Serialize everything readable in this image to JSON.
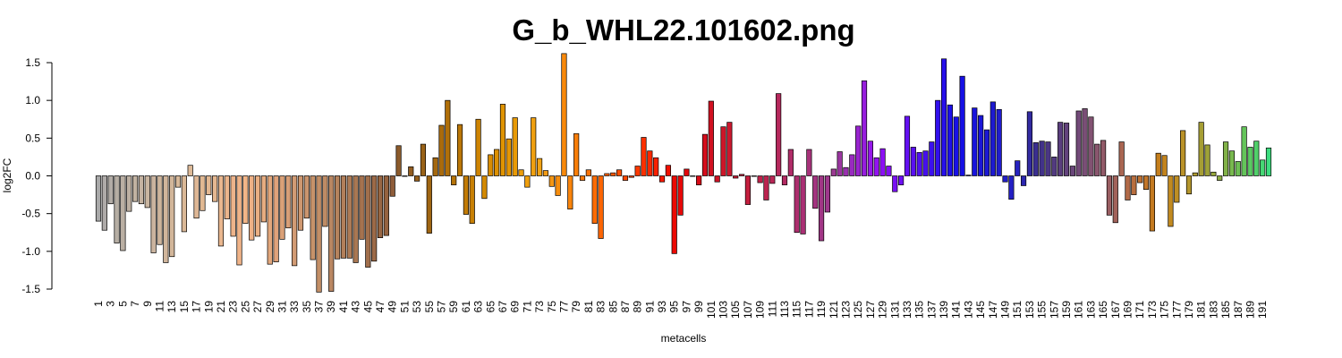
{
  "chart_data": {
    "type": "bar",
    "title": "G_b_WHL22.101602.png",
    "xlabel": "metacells",
    "ylabel": "log2FC",
    "ylim": [
      -1.5,
      1.5
    ],
    "yticks": [
      -1.5,
      -1.0,
      -0.5,
      0.0,
      0.5,
      1.0,
      1.5
    ],
    "ytick_labels": [
      "-1.5",
      "-1.0",
      "-0.5",
      "0.0",
      "0.5",
      "1.0",
      "1.5"
    ],
    "xtick_labels": [
      "1",
      "3",
      "5",
      "7",
      "9",
      "11",
      "13",
      "15",
      "17",
      "19",
      "21",
      "23",
      "25",
      "27",
      "29",
      "31",
      "33",
      "35",
      "37",
      "39",
      "41",
      "43",
      "45",
      "47",
      "49",
      "51",
      "53",
      "55",
      "57",
      "59",
      "61",
      "63",
      "65",
      "67",
      "69",
      "71",
      "73",
      "75",
      "77",
      "79",
      "81",
      "83",
      "85",
      "87",
      "89",
      "91",
      "93",
      "95",
      "97",
      "99",
      "101",
      "103",
      "105",
      "107",
      "109",
      "111",
      "113",
      "115",
      "117",
      "119",
      "121",
      "123",
      "125",
      "127",
      "129",
      "131",
      "133",
      "135",
      "137",
      "139",
      "141",
      "143",
      "145",
      "147",
      "149",
      "151",
      "153",
      "155",
      "157",
      "159",
      "161",
      "163",
      "165",
      "167",
      "169",
      "171",
      "173",
      "175",
      "177",
      "179",
      "181",
      "183",
      "185",
      "187",
      "189",
      "191"
    ],
    "grid": false,
    "values": [
      -0.6,
      -0.72,
      -0.37,
      -0.89,
      -0.99,
      -0.47,
      -0.34,
      -0.37,
      -0.42,
      -1.02,
      -0.91,
      -1.15,
      -1.07,
      -0.15,
      -0.74,
      0.14,
      -0.56,
      -0.46,
      -0.25,
      -0.34,
      -0.93,
      -0.57,
      -0.8,
      -1.18,
      -0.63,
      -0.85,
      -0.8,
      -0.61,
      -1.17,
      -1.14,
      -0.84,
      -0.69,
      -1.19,
      -0.72,
      -0.56,
      -1.11,
      -1.54,
      -0.67,
      -1.53,
      -1.1,
      -1.09,
      -1.09,
      -1.15,
      -0.84,
      -1.21,
      -1.13,
      -0.82,
      -0.79,
      -0.27,
      0.4,
      0.0,
      0.12,
      -0.07,
      0.42,
      -0.76,
      0.24,
      0.67,
      1.0,
      -0.12,
      0.68,
      -0.51,
      -0.63,
      0.75,
      -0.3,
      0.28,
      0.35,
      0.95,
      0.49,
      0.77,
      0.08,
      -0.15,
      0.77,
      0.23,
      0.07,
      -0.14,
      -0.26,
      1.62,
      -0.44,
      0.56,
      -0.06,
      0.08,
      -0.63,
      -0.83,
      0.03,
      0.04,
      0.08,
      -0.06,
      -0.02,
      0.13,
      0.51,
      0.33,
      0.24,
      -0.08,
      0.14,
      -1.03,
      -0.52,
      0.09,
      0.0,
      -0.12,
      0.55,
      0.99,
      -0.08,
      0.65,
      0.71,
      -0.03,
      0.02,
      -0.38,
      0.0,
      -0.09,
      -0.32,
      -0.1,
      1.09,
      -0.12,
      0.35,
      -0.75,
      -0.77,
      0.35,
      -0.43,
      -0.86,
      -0.48,
      0.09,
      0.32,
      0.11,
      0.28,
      0.66,
      1.26,
      0.46,
      0.24,
      0.36,
      0.13,
      -0.21,
      -0.12,
      0.79,
      0.38,
      0.31,
      0.33,
      0.45,
      1.0,
      1.55,
      0.94,
      0.78,
      1.32,
      0.01,
      0.9,
      0.8,
      0.61,
      0.98,
      0.88,
      -0.08,
      -0.31,
      0.2,
      -0.13,
      0.85,
      0.44,
      0.46,
      0.45,
      0.25,
      0.71,
      0.7,
      0.13,
      0.86,
      0.89,
      0.78,
      0.42,
      0.47,
      -0.52,
      -0.62,
      0.45,
      -0.32,
      -0.25,
      -0.09,
      -0.18,
      -0.73,
      0.3,
      0.27,
      -0.67,
      -0.35,
      0.6,
      -0.24,
      0.04,
      0.71,
      0.41,
      0.05,
      -0.06,
      0.45,
      0.33,
      0.19,
      0.65,
      0.38,
      0.46,
      0.21,
      0.37
    ],
    "colors": [
      "#a9a9a9",
      "#aeaaa8",
      "#b2aca6",
      "#b6aea4",
      "#baafa3",
      "#bdb0a2",
      "#c1b2a1",
      "#c5b3a1",
      "#c9b5a0",
      "#cbb49f",
      "#ceb59c",
      "#d0b59b",
      "#d2b69a",
      "#d7b899",
      "#dab897",
      "#ddba98",
      "#dfb896",
      "#e2b993",
      "#e3b892",
      "#e5b790",
      "#e9b78f",
      "#ebb58c",
      "#edb38a",
      "#f0b388",
      "#f2b587",
      "#efb186",
      "#eaaf83",
      "#e6ac80",
      "#e2a77c",
      "#dfa27a",
      "#dba178",
      "#d79e77",
      "#d29b74",
      "#cf9870",
      "#ca956e",
      "#c6926a",
      "#c28e66",
      "#be8b64",
      "#ba8762",
      "#b6835d",
      "#b27f5a",
      "#ad7b56",
      "#a97752",
      "#a5724f",
      "#a16f4c",
      "#9c6a47",
      "#986643",
      "#95623f",
      "#8f5d3a",
      "#8b5a2b",
      "#8d5b27",
      "#925d21",
      "#965f1c",
      "#9a6217",
      "#9f6512",
      "#a4680f",
      "#aa6b0c",
      "#b06f09",
      "#b57308",
      "#bb7706",
      "#c27b05",
      "#c88004",
      "#ce8403",
      "#d38902",
      "#d88c02",
      "#dc9002",
      "#e09402",
      "#e49603",
      "#e89a06",
      "#ec9d0a",
      "#ef9f0d",
      "#f0a010",
      "#f2a314",
      "#f19a14",
      "#f39512",
      "#f68d0e",
      "#f8890c",
      "#f9840b",
      "#f97e09",
      "#fa7808",
      "#fb7206",
      "#fb6b05",
      "#fc6504",
      "#fc5e03",
      "#fd5702",
      "#fd4f02",
      "#fd4801",
      "#fe4001",
      "#fd3800",
      "#fc3000",
      "#fa2800",
      "#f82000",
      "#f51800",
      "#f01000",
      "#eb0a04",
      "#e60808",
      "#e1080d",
      "#dc0911",
      "#d80b17",
      "#d40d1c",
      "#d11020",
      "#cf1325",
      "#cd1629",
      "#cb182e",
      "#c91a33",
      "#c71c38",
      "#c41e3e",
      "#c22044",
      "#bf224a",
      "#bc2450",
      "#b92656",
      "#b6285c",
      "#b32a62",
      "#b02c68",
      "#ad2e6e",
      "#aa3074",
      "#a7327a",
      "#a43480",
      "#a13686",
      "#9e388c",
      "#9b3a92",
      "#9a36a0",
      "#9a30b0",
      "#992ac0",
      "#9824cf",
      "#971ede",
      "#9618ea",
      "#9412f2",
      "#8c10f4",
      "#8210f4",
      "#7810f3",
      "#6e10f3",
      "#6410f2",
      "#5a10f1",
      "#5010f0",
      "#4610ef",
      "#3c10ee",
      "#3210ed",
      "#2810ec",
      "#1e10eb",
      "#1810e8",
      "#1610e4",
      "#1612e0",
      "#1814dc",
      "#1a16d8",
      "#1c18d4",
      "#1e1ad0",
      "#201ccc",
      "#221ec8",
      "#2420c4",
      "#2622c0",
      "#2c26b0",
      "#322aa0",
      "#3a2e90",
      "#42328a",
      "#4a3684",
      "#523a80",
      "#5a3e7e",
      "#62427c",
      "#6a467a",
      "#724a78",
      "#7a4e76",
      "#825272",
      "#8a566e",
      "#925a68",
      "#9a5e62",
      "#a2625a",
      "#aa6652",
      "#b26a48",
      "#b86e3e",
      "#be7234",
      "#c2762a",
      "#c47a20",
      "#c47e1c",
      "#c4841c",
      "#c28a20",
      "#be8e24",
      "#ba9228",
      "#b4962c",
      "#ae9a30",
      "#a69e34",
      "#9ea238",
      "#96a63c",
      "#8cac42",
      "#82b248",
      "#78b84e",
      "#6ebe54",
      "#64c45a",
      "#5aca62",
      "#50d06a",
      "#46d674",
      "#3cdc7e",
      "#32e288",
      "#28e894",
      "#1eeea2",
      "#18f2b2",
      "#14f6c2",
      "#12fad4",
      "#10fce6",
      "#10fef4"
    ]
  }
}
